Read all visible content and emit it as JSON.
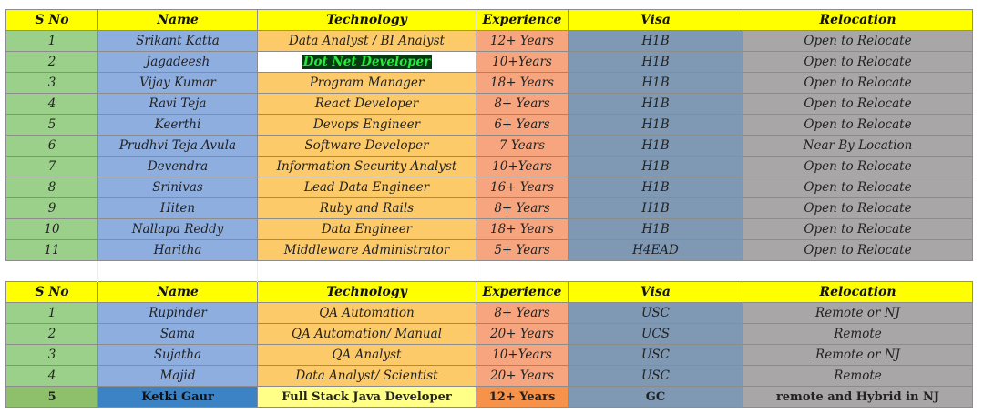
{
  "columns": [
    "S No",
    "Name",
    "Technology",
    "Experience",
    "Visa",
    "Relocation"
  ],
  "table1": [
    {
      "sno": "1",
      "name": "Srikant Katta",
      "tech": "Data Analyst / BI Analyst",
      "exp": "12+ Years",
      "visa": "H1B",
      "rel": "Open to Relocate"
    },
    {
      "sno": "2",
      "name": "Jagadeesh",
      "tech": "Dot Net Developer",
      "exp": "10+Years",
      "visa": "H1B",
      "rel": "Open to Relocate"
    },
    {
      "sno": "3",
      "name": "Vijay Kumar",
      "tech": "Program Manager",
      "exp": "18+ Years",
      "visa": "H1B",
      "rel": "Open to Relocate"
    },
    {
      "sno": "4",
      "name": "Ravi Teja",
      "tech": "React Developer",
      "exp": "8+ Years",
      "visa": "H1B",
      "rel": "Open to Relocate"
    },
    {
      "sno": "5",
      "name": "Keerthi",
      "tech": "Devops Engineer",
      "exp": "6+ Years",
      "visa": "H1B",
      "rel": "Open to Relocate"
    },
    {
      "sno": "6",
      "name": "Prudhvi Teja Avula",
      "tech": "Software Developer",
      "exp": "7 Years",
      "visa": "H1B",
      "rel": "Near By Location"
    },
    {
      "sno": "7",
      "name": "Devendra",
      "tech": "Information Security Analyst",
      "exp": "10+Years",
      "visa": "H1B",
      "rel": "Open to Relocate"
    },
    {
      "sno": "8",
      "name": "Srinivas",
      "tech": "Lead Data Engineer",
      "exp": "16+ Years",
      "visa": "H1B",
      "rel": "Open to Relocate"
    },
    {
      "sno": "9",
      "name": "Hiten",
      "tech": "Ruby and Rails",
      "exp": "8+ Years",
      "visa": "H1B",
      "rel": "Open to Relocate"
    },
    {
      "sno": "10",
      "name": "Nallapa Reddy",
      "tech": "Data Engineer",
      "exp": "18+ Years",
      "visa": "H1B",
      "rel": "Open to Relocate"
    },
    {
      "sno": "11",
      "name": "Haritha",
      "tech": "Middleware Administrator",
      "exp": "5+ Years",
      "visa": "H4EAD",
      "rel": "Open to Relocate"
    }
  ],
  "table2": [
    {
      "sno": "1",
      "name": "Rupinder",
      "tech": "QA Automation",
      "exp": "8+ Years",
      "visa": "USC",
      "rel": "Remote or NJ"
    },
    {
      "sno": "2",
      "name": "Sama",
      "tech": "QA Automation/ Manual",
      "exp": "20+ Years",
      "visa": "UCS",
      "rel": "Remote"
    },
    {
      "sno": "3",
      "name": "Sujatha",
      "tech": "QA Analyst",
      "exp": "10+Years",
      "visa": "USC",
      "rel": "Remote or NJ"
    },
    {
      "sno": "4",
      "name": "Majid",
      "tech": "Data Analyst/ Scientist",
      "exp": "20+ Years",
      "visa": "USC",
      "rel": "Remote"
    },
    {
      "sno": "5",
      "name": "Ketki Gaur",
      "tech": "Full Stack Java Developer",
      "exp": "12+ Years",
      "visa": "GC",
      "rel": "remote and Hybrid in NJ"
    }
  ],
  "highlight": {
    "text_color": "#27ea3e",
    "background": "#063b12"
  }
}
